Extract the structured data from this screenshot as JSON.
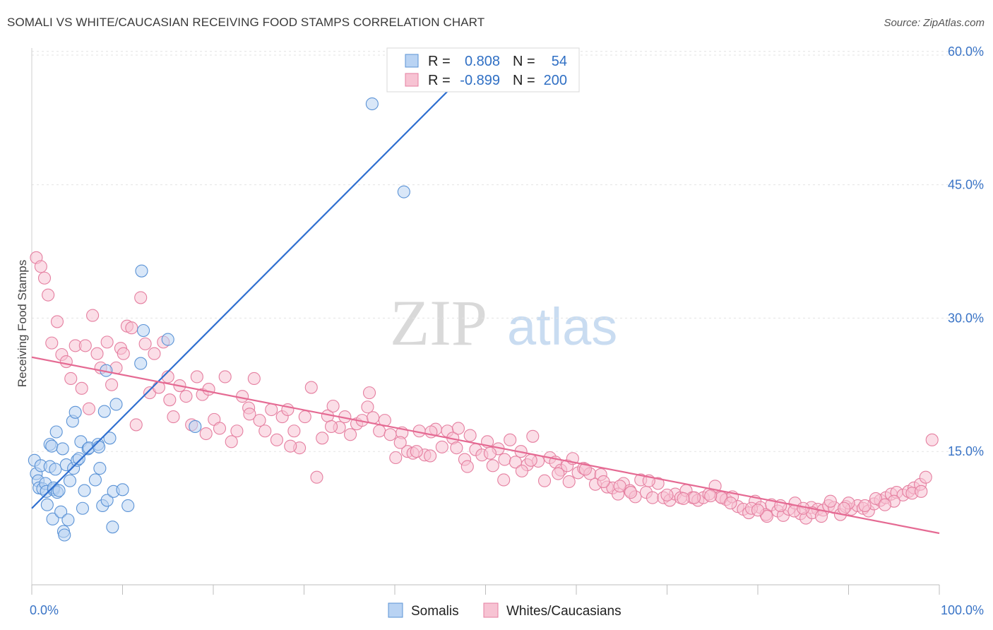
{
  "header": {
    "title": "SOMALI VS WHITE/CAUCASIAN RECEIVING FOOD STAMPS CORRELATION CHART",
    "source": "Source: ZipAtlas.com"
  },
  "watermark": {
    "zip": "ZIP",
    "atlas": "atlas"
  },
  "colors": {
    "blue": "#5b93d6",
    "blue_fill": "#b9d3f3",
    "blue_line": "#2f6fd0",
    "pink": "#e57fa0",
    "pink_fill": "#f7c3d3",
    "pink_line": "#e56a93",
    "grid": "#e3e3e3",
    "tick_text": "#3a74c6"
  },
  "legend": {
    "rows": [
      {
        "r_label": "R = ",
        "r_value": "0.808",
        "n_label": "N = ",
        "n_value": "54"
      },
      {
        "r_label": "R = ",
        "r_value": "-0.899",
        "n_label": "N = ",
        "n_value": "200"
      }
    ]
  },
  "bottom_legend": {
    "items": [
      "Somalis",
      "Whites/Caucasians"
    ]
  },
  "chart_data": {
    "type": "scatter",
    "ylabel": "Receiving Food Stamps",
    "xlim": [
      0,
      100
    ],
    "ylim": [
      0,
      63
    ],
    "x_tick_labels": [
      "0.0%",
      "100.0%"
    ],
    "y_ticks": [
      15,
      30,
      45,
      60
    ],
    "y_tick_labels": [
      "15.0%",
      "30.0%",
      "45.0%",
      "60.0%"
    ],
    "grid": true,
    "series": [
      {
        "name": "Somalis",
        "trend": {
          "x": [
            0,
            50
          ],
          "y": [
            8.6,
            59.8
          ]
        },
        "points": [
          [
            0.3,
            14.0
          ],
          [
            0.5,
            12.5
          ],
          [
            0.7,
            11.7
          ],
          [
            0.8,
            10.9
          ],
          [
            1.0,
            13.4
          ],
          [
            1.2,
            10.8
          ],
          [
            1.5,
            11.4
          ],
          [
            1.6,
            10.5
          ],
          [
            1.7,
            9.0
          ],
          [
            2.0,
            13.3
          ],
          [
            2.0,
            15.8
          ],
          [
            2.2,
            15.6
          ],
          [
            2.3,
            7.4
          ],
          [
            2.4,
            10.7
          ],
          [
            2.4,
            10.9
          ],
          [
            2.6,
            13.0
          ],
          [
            2.7,
            17.2
          ],
          [
            2.8,
            10.4
          ],
          [
            3.0,
            10.6
          ],
          [
            3.2,
            8.2
          ],
          [
            3.4,
            15.3
          ],
          [
            3.5,
            6.0
          ],
          [
            3.6,
            5.6
          ],
          [
            3.8,
            13.5
          ],
          [
            4.0,
            7.3
          ],
          [
            4.2,
            11.7
          ],
          [
            4.5,
            18.4
          ],
          [
            4.6,
            13.1
          ],
          [
            4.8,
            19.4
          ],
          [
            5.0,
            14.0
          ],
          [
            5.2,
            14.2
          ],
          [
            5.4,
            16.1
          ],
          [
            5.6,
            8.6
          ],
          [
            5.8,
            10.6
          ],
          [
            6.2,
            15.3
          ],
          [
            6.3,
            15.4
          ],
          [
            7.0,
            11.8
          ],
          [
            7.3,
            15.8
          ],
          [
            7.4,
            15.5
          ],
          [
            7.5,
            13.1
          ],
          [
            7.8,
            8.9
          ],
          [
            8.0,
            19.5
          ],
          [
            8.2,
            24.1
          ],
          [
            8.3,
            9.5
          ],
          [
            8.6,
            16.5
          ],
          [
            8.9,
            6.5
          ],
          [
            9.0,
            10.5
          ],
          [
            9.3,
            20.3
          ],
          [
            10.0,
            10.7
          ],
          [
            10.6,
            8.9
          ],
          [
            12.0,
            24.9
          ],
          [
            12.1,
            35.3
          ],
          [
            12.3,
            28.6
          ],
          [
            15.0,
            27.6
          ],
          [
            18.0,
            17.8
          ],
          [
            37.5,
            54.1
          ],
          [
            41.0,
            44.2
          ]
        ]
      },
      {
        "name": "Whites/Caucasians",
        "trend": {
          "x": [
            0,
            100
          ],
          "y": [
            25.6,
            5.8
          ]
        },
        "points": [
          [
            0.5,
            36.8
          ],
          [
            1.0,
            35.8
          ],
          [
            1.4,
            34.5
          ],
          [
            1.8,
            32.6
          ],
          [
            2.2,
            27.2
          ],
          [
            2.8,
            29.6
          ],
          [
            3.3,
            25.9
          ],
          [
            3.8,
            25.1
          ],
          [
            4.3,
            23.2
          ],
          [
            4.8,
            26.9
          ],
          [
            5.5,
            22.1
          ],
          [
            5.9,
            26.9
          ],
          [
            6.3,
            19.8
          ],
          [
            6.7,
            30.3
          ],
          [
            7.2,
            26.0
          ],
          [
            7.6,
            24.4
          ],
          [
            8.3,
            27.3
          ],
          [
            8.8,
            22.5
          ],
          [
            9.3,
            24.4
          ],
          [
            9.8,
            26.6
          ],
          [
            10.1,
            26.0
          ],
          [
            10.5,
            29.1
          ],
          [
            11.0,
            28.9
          ],
          [
            11.5,
            18.0
          ],
          [
            12.0,
            32.3
          ],
          [
            12.5,
            27.1
          ],
          [
            13.0,
            21.6
          ],
          [
            13.5,
            26.0
          ],
          [
            14.0,
            22.2
          ],
          [
            14.5,
            27.3
          ],
          [
            15.0,
            23.4
          ],
          [
            15.6,
            18.9
          ],
          [
            16.3,
            22.4
          ],
          [
            17.0,
            21.2
          ],
          [
            17.6,
            18.0
          ],
          [
            18.2,
            23.4
          ],
          [
            18.8,
            21.4
          ],
          [
            19.5,
            22.0
          ],
          [
            20.1,
            18.6
          ],
          [
            20.7,
            17.6
          ],
          [
            21.3,
            23.4
          ],
          [
            22.0,
            16.1
          ],
          [
            22.6,
            17.3
          ],
          [
            23.2,
            21.2
          ],
          [
            23.9,
            19.9
          ],
          [
            24.5,
            23.2
          ],
          [
            25.1,
            18.5
          ],
          [
            25.7,
            17.3
          ],
          [
            26.4,
            19.7
          ],
          [
            27.0,
            16.3
          ],
          [
            27.6,
            18.9
          ],
          [
            28.2,
            19.7
          ],
          [
            28.9,
            17.3
          ],
          [
            29.5,
            15.4
          ],
          [
            30.1,
            18.9
          ],
          [
            30.8,
            22.2
          ],
          [
            31.4,
            12.1
          ],
          [
            32.0,
            16.5
          ],
          [
            32.6,
            19.0
          ],
          [
            33.2,
            20.1
          ],
          [
            33.9,
            17.7
          ],
          [
            34.5,
            18.9
          ],
          [
            35.1,
            16.9
          ],
          [
            35.8,
            18.1
          ],
          [
            36.4,
            18.5
          ],
          [
            37.0,
            20.0
          ],
          [
            37.6,
            18.8
          ],
          [
            38.3,
            17.3
          ],
          [
            38.9,
            18.5
          ],
          [
            39.5,
            16.9
          ],
          [
            40.1,
            14.3
          ],
          [
            40.8,
            17.1
          ],
          [
            41.4,
            15.0
          ],
          [
            42.0,
            14.8
          ],
          [
            42.7,
            17.3
          ],
          [
            43.3,
            14.6
          ],
          [
            43.9,
            14.5
          ],
          [
            44.5,
            17.5
          ],
          [
            45.2,
            15.5
          ],
          [
            45.8,
            17.3
          ],
          [
            46.4,
            16.5
          ],
          [
            47.0,
            17.6
          ],
          [
            47.7,
            14.1
          ],
          [
            48.3,
            16.8
          ],
          [
            48.9,
            15.2
          ],
          [
            49.6,
            14.6
          ],
          [
            50.2,
            16.1
          ],
          [
            50.8,
            13.4
          ],
          [
            51.4,
            15.3
          ],
          [
            52.1,
            14.1
          ],
          [
            52.7,
            16.3
          ],
          [
            53.3,
            13.8
          ],
          [
            53.9,
            15.0
          ],
          [
            54.6,
            13.5
          ],
          [
            55.2,
            16.7
          ],
          [
            55.8,
            13.9
          ],
          [
            56.5,
            11.7
          ],
          [
            57.1,
            14.3
          ],
          [
            57.7,
            13.8
          ],
          [
            58.3,
            12.9
          ],
          [
            59.0,
            13.4
          ],
          [
            59.6,
            14.2
          ],
          [
            60.2,
            12.6
          ],
          [
            60.8,
            13.1
          ],
          [
            61.5,
            12.5
          ],
          [
            62.1,
            11.3
          ],
          [
            62.7,
            12.4
          ],
          [
            63.4,
            11.0
          ],
          [
            64.0,
            10.9
          ],
          [
            64.6,
            10.2
          ],
          [
            65.2,
            11.4
          ],
          [
            65.9,
            10.6
          ],
          [
            66.5,
            9.9
          ],
          [
            67.1,
            11.8
          ],
          [
            67.7,
            10.4
          ],
          [
            68.4,
            9.8
          ],
          [
            69.0,
            11.4
          ],
          [
            69.6,
            9.8
          ],
          [
            70.3,
            9.5
          ],
          [
            70.9,
            10.2
          ],
          [
            71.5,
            9.8
          ],
          [
            72.1,
            10.6
          ],
          [
            72.8,
            9.8
          ],
          [
            73.4,
            9.5
          ],
          [
            74.0,
            9.8
          ],
          [
            74.6,
            10.2
          ],
          [
            75.3,
            11.1
          ],
          [
            75.9,
            9.9
          ],
          [
            76.5,
            9.6
          ],
          [
            77.2,
            9.9
          ],
          [
            77.8,
            8.8
          ],
          [
            78.4,
            8.5
          ],
          [
            79.0,
            8.1
          ],
          [
            79.7,
            9.4
          ],
          [
            80.3,
            8.7
          ],
          [
            80.9,
            7.9
          ],
          [
            81.5,
            9.0
          ],
          [
            82.2,
            8.3
          ],
          [
            82.8,
            7.8
          ],
          [
            83.4,
            8.5
          ],
          [
            84.1,
            9.2
          ],
          [
            84.7,
            8.0
          ],
          [
            85.3,
            7.5
          ],
          [
            85.9,
            8.7
          ],
          [
            86.6,
            8.5
          ],
          [
            87.2,
            8.4
          ],
          [
            87.8,
            8.9
          ],
          [
            88.4,
            8.7
          ],
          [
            89.1,
            7.9
          ],
          [
            89.7,
            8.8
          ],
          [
            90.3,
            8.5
          ],
          [
            91.0,
            8.9
          ],
          [
            91.6,
            8.6
          ],
          [
            92.2,
            8.3
          ],
          [
            92.8,
            9.1
          ],
          [
            93.5,
            9.5
          ],
          [
            94.1,
            9.8
          ],
          [
            94.7,
            10.2
          ],
          [
            95.3,
            10.4
          ],
          [
            96.0,
            10.1
          ],
          [
            96.6,
            10.5
          ],
          [
            97.2,
            10.9
          ],
          [
            97.9,
            11.3
          ],
          [
            98.5,
            12.1
          ],
          [
            99.2,
            16.3
          ],
          [
            15.2,
            20.8
          ],
          [
            19.2,
            17.0
          ],
          [
            24.0,
            19.2
          ],
          [
            28.5,
            15.6
          ],
          [
            33.0,
            17.8
          ],
          [
            37.2,
            21.6
          ],
          [
            40.6,
            16.0
          ],
          [
            44.0,
            17.2
          ],
          [
            48.0,
            13.3
          ],
          [
            52.0,
            11.8
          ],
          [
            55.0,
            14.0
          ],
          [
            59.2,
            11.6
          ],
          [
            63.0,
            11.6
          ],
          [
            66.0,
            10.4
          ],
          [
            70.0,
            10.1
          ],
          [
            73.0,
            9.8
          ],
          [
            76.0,
            9.8
          ],
          [
            79.3,
            8.6
          ],
          [
            81.0,
            7.7
          ],
          [
            84.0,
            8.3
          ],
          [
            86.0,
            8.1
          ],
          [
            88.0,
            9.4
          ],
          [
            90.0,
            9.2
          ],
          [
            93.0,
            9.7
          ],
          [
            95.0,
            9.4
          ],
          [
            97.0,
            10.3
          ],
          [
            98.0,
            10.5
          ],
          [
            42.4,
            15.0
          ],
          [
            46.8,
            15.4
          ],
          [
            50.5,
            14.8
          ],
          [
            54.0,
            12.8
          ],
          [
            58.0,
            12.5
          ],
          [
            61.0,
            13.0
          ],
          [
            64.8,
            11.1
          ],
          [
            68.0,
            11.7
          ],
          [
            71.8,
            9.7
          ],
          [
            74.8,
            10.0
          ],
          [
            77.0,
            9.2
          ],
          [
            80.0,
            8.4
          ],
          [
            82.5,
            8.9
          ],
          [
            85.0,
            8.6
          ],
          [
            87.0,
            7.7
          ],
          [
            89.5,
            8.6
          ],
          [
            91.8,
            8.9
          ],
          [
            94.0,
            9.0
          ]
        ]
      }
    ]
  }
}
